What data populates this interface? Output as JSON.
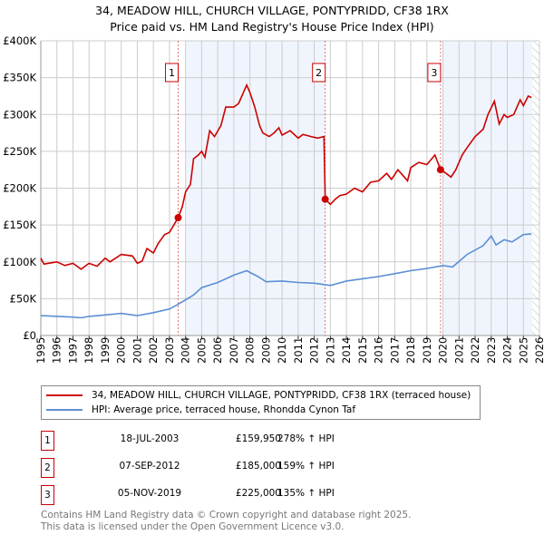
{
  "chart_data": {
    "type": "line",
    "title": "34, MEADOW HILL, CHURCH VILLAGE, PONTYPRIDD, CF38 1RX",
    "subtitle": "Price paid vs. HM Land Registry's House Price Index (HPI)",
    "xlim": [
      1995,
      2026
    ],
    "ylim": [
      0,
      400000
    ],
    "x_ticks": [
      "1995",
      "1996",
      "1997",
      "1998",
      "1999",
      "2000",
      "2001",
      "2002",
      "2003",
      "2004",
      "2005",
      "2006",
      "2007",
      "2008",
      "2009",
      "2010",
      "2011",
      "2012",
      "2013",
      "2014",
      "2015",
      "2016",
      "2017",
      "2018",
      "2019",
      "2020",
      "2021",
      "2022",
      "2023",
      "2024",
      "2025",
      "2026"
    ],
    "y_ticks": [
      {
        "v": 0,
        "label": "£0"
      },
      {
        "v": 50000,
        "label": "£50K"
      },
      {
        "v": 100000,
        "label": "£100K"
      },
      {
        "v": 150000,
        "label": "£150K"
      },
      {
        "v": 200000,
        "label": "£200K"
      },
      {
        "v": 250000,
        "label": "£250K"
      },
      {
        "v": 300000,
        "label": "£300K"
      },
      {
        "v": 350000,
        "label": "£350K"
      },
      {
        "v": 400000,
        "label": "£400K"
      }
    ],
    "grid": true,
    "series": [
      {
        "name": "34, MEADOW HILL, CHURCH VILLAGE, PONTYPRIDD, CF38 1RX (terraced house)",
        "color": "#cc0000",
        "x": [
          1995.0,
          1995.2,
          1996,
          1996.5,
          1997,
          1997.5,
          1998,
          1998.5,
          1999,
          1999.3,
          2000,
          2000.7,
          2001,
          2001.3,
          2001.6,
          2002,
          2002.3,
          2002.7,
          2003,
          2003.54,
          2003.8,
          2004.0,
          2004.3,
          2004.5,
          2004.8,
          2005.0,
          2005.2,
          2005.5,
          2005.8,
          2006.2,
          2006.5,
          2007.0,
          2007.3,
          2007.6,
          2007.8,
          2008.0,
          2008.3,
          2008.6,
          2008.8,
          2009.2,
          2009.5,
          2009.8,
          2010.0,
          2010.5,
          2011.0,
          2011.3,
          2011.8,
          2012.2,
          2012.6,
          2012.68,
          2013.0,
          2013.3,
          2013.6,
          2014,
          2014.5,
          2015,
          2015.5,
          2016,
          2016.5,
          2016.8,
          2017.2,
          2017.8,
          2018,
          2018.5,
          2019,
          2019.5,
          2019.85,
          2020.2,
          2020.5,
          2020.8,
          2021.2,
          2021.5,
          2022,
          2022.5,
          2022.8,
          2023.2,
          2023.5,
          2023.8,
          2024,
          2024.4,
          2024.8,
          2025.0,
          2025.3,
          2025.5
        ],
        "y": [
          105,
          97,
          100,
          95,
          98,
          90,
          98,
          94,
          105,
          100,
          110,
          108,
          98,
          101,
          118,
          112,
          125,
          137,
          140,
          160,
          175,
          195,
          205,
          240,
          245,
          250,
          242,
          278,
          270,
          285,
          310,
          310,
          315,
          330,
          340,
          330,
          310,
          285,
          275,
          270,
          275,
          282,
          272,
          278,
          268,
          273,
          270,
          268,
          270,
          185,
          178,
          185,
          190,
          192,
          200,
          195,
          208,
          210,
          220,
          212,
          225,
          210,
          228,
          235,
          232,
          245,
          225,
          220,
          215,
          225,
          245,
          255,
          270,
          280,
          300,
          318,
          287,
          300,
          296,
          300,
          320,
          312,
          325,
          323
        ]
      },
      {
        "name": "HPI: Average price, terraced house, Rhondda Cynon Taf",
        "color": "#5b8fd4",
        "x": [
          1995,
          1997,
          1997.5,
          1998,
          1999,
          2000,
          2001,
          2002,
          2003,
          2003.5,
          2004.5,
          2005,
          2006,
          2007,
          2007.8,
          2008.5,
          2009,
          2010,
          2011,
          2012,
          2013,
          2014,
          2015,
          2016,
          2017,
          2018,
          2019,
          2020,
          2020.6,
          2021.5,
          2022.5,
          2023,
          2023.3,
          2023.8,
          2024.3,
          2025,
          2025.5
        ],
        "y": [
          27,
          25,
          24,
          26,
          28,
          30,
          27,
          31,
          36,
          42,
          55,
          65,
          72,
          82,
          88,
          80,
          73,
          74,
          72,
          71,
          68,
          74,
          77,
          80,
          84,
          88,
          91,
          95,
          93,
          110,
          122,
          135,
          123,
          130,
          127,
          137,
          138
        ]
      }
    ],
    "y_units": "thousands GBP",
    "shaded_ranges": [
      [
        2004.0,
        2012.68
      ],
      [
        2020.0,
        2025.55
      ]
    ],
    "projection_hatch_from": 2025.55
  },
  "legend": {
    "property": "34, MEADOW HILL, CHURCH VILLAGE, PONTYPRIDD, CF38 1RX (terraced house)",
    "hpi": "HPI: Average price, terraced house, Rhondda Cynon Taf"
  },
  "sales": [
    {
      "num": "1",
      "x": 2003.54,
      "y": 159.95,
      "date": "18-JUL-2003",
      "price": "£159,950",
      "hpi": "278% ↑ HPI"
    },
    {
      "num": "2",
      "x": 2012.68,
      "y": 185,
      "date": "07-SEP-2012",
      "price": "£185,000",
      "hpi": "159% ↑ HPI"
    },
    {
      "num": "3",
      "x": 2019.85,
      "y": 225,
      "date": "05-NOV-2019",
      "price": "£225,000",
      "hpi": "135% ↑ HPI"
    }
  ],
  "footer": {
    "line1": "Contains HM Land Registry data © Crown copyright and database right 2025.",
    "line2": "This data is licensed under the Open Government Licence v3.0."
  }
}
